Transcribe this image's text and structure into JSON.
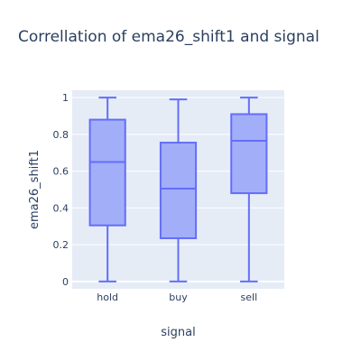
{
  "chart_data": {
    "type": "box",
    "title": "Correllation of ema26_shift1 and signal",
    "xlabel": "signal",
    "ylabel": "ema26_shift1",
    "ylim": [
      -0.04,
      1.04
    ],
    "yticks": [
      0,
      0.2,
      0.4,
      0.6,
      0.8,
      1
    ],
    "ytick_labels": [
      "0",
      "0.2",
      "0.4",
      "0.6",
      "0.8",
      "1"
    ],
    "grid": true,
    "legend": "none",
    "colors": {
      "fill": "#a3aef9",
      "line": "#636efa",
      "plot_bg": "#e5ecf6",
      "grid": "#ffffff",
      "text": "#2a3f5f"
    },
    "categories": [
      "hold",
      "buy",
      "sell"
    ],
    "boxes": [
      {
        "category": "hold",
        "min": 0.0,
        "q1": 0.305,
        "median": 0.65,
        "q3": 0.88,
        "max": 1.0
      },
      {
        "category": "buy",
        "min": 0.0,
        "q1": 0.235,
        "median": 0.505,
        "q3": 0.755,
        "max": 0.99
      },
      {
        "category": "sell",
        "min": 0.0,
        "q1": 0.48,
        "median": 0.765,
        "q3": 0.91,
        "max": 1.0
      }
    ]
  }
}
